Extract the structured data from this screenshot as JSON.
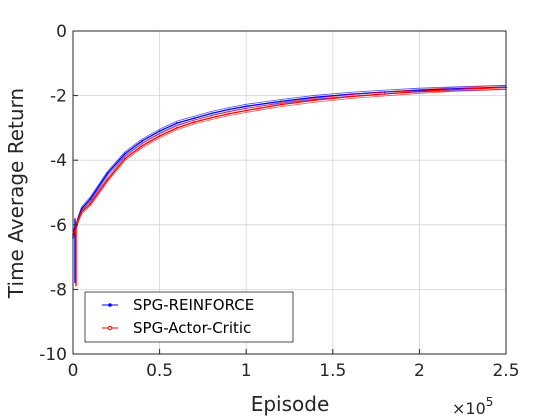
{
  "chart_data": {
    "type": "line",
    "xlabel": "Episode",
    "ylabel": "Time Average Return",
    "x_exponent_label": "×10",
    "x_exponent_power": "5",
    "xlim": [
      0,
      250000
    ],
    "ylim": [
      -10,
      0
    ],
    "x_ticks": [
      0,
      50000,
      100000,
      150000,
      200000,
      250000
    ],
    "x_tick_labels": [
      "0",
      "0.5",
      "1",
      "1.5",
      "2",
      "2.5"
    ],
    "y_ticks": [
      0,
      -2,
      -4,
      -6,
      -8,
      -10
    ],
    "y_tick_labels": [
      "0",
      "-2",
      "-4",
      "-6",
      "-8",
      "-10"
    ],
    "grid": true,
    "legend_position": "bottom-left",
    "colors": {
      "blue": "#0000ff",
      "red": "#ff0000"
    },
    "series": [
      {
        "name": "SPG-REINFORCE",
        "color": "#0000ff",
        "x": [
          0,
          1000,
          2000,
          3000,
          5000,
          10000,
          20000,
          30000,
          40000,
          50000,
          60000,
          70000,
          80000,
          90000,
          100000,
          120000,
          140000,
          160000,
          180000,
          200000,
          220000,
          250000
        ],
        "y": [
          -6.3,
          -6.1,
          -6.0,
          -5.8,
          -5.5,
          -5.2,
          -4.4,
          -3.8,
          -3.4,
          -3.1,
          -2.85,
          -2.7,
          -2.55,
          -2.43,
          -2.33,
          -2.18,
          -2.05,
          -1.96,
          -1.89,
          -1.83,
          -1.79,
          -1.74
        ]
      },
      {
        "name": "SPG-Actor-Critic",
        "color": "#ff0000",
        "x": [
          0,
          1000,
          2000,
          3000,
          5000,
          10000,
          20000,
          30000,
          40000,
          50000,
          60000,
          70000,
          80000,
          90000,
          100000,
          120000,
          140000,
          160000,
          180000,
          200000,
          220000,
          250000
        ],
        "y": [
          -6.4,
          -6.2,
          -6.05,
          -5.85,
          -5.6,
          -5.35,
          -4.6,
          -3.95,
          -3.55,
          -3.25,
          -3.0,
          -2.82,
          -2.68,
          -2.56,
          -2.46,
          -2.28,
          -2.14,
          -2.03,
          -1.95,
          -1.87,
          -1.81,
          -1.75
        ]
      }
    ]
  }
}
